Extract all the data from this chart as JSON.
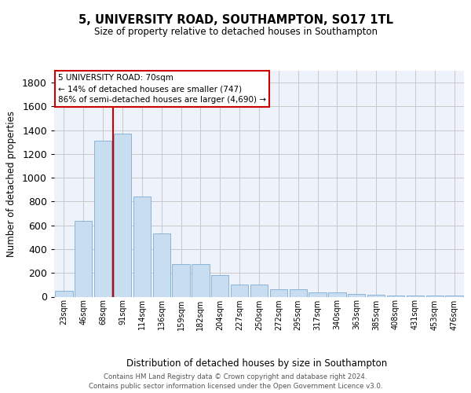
{
  "title": "5, UNIVERSITY ROAD, SOUTHAMPTON, SO17 1TL",
  "subtitle": "Size of property relative to detached houses in Southampton",
  "xlabel": "Distribution of detached houses by size in Southampton",
  "ylabel": "Number of detached properties",
  "bar_color": "#c9ddf0",
  "bar_edge_color": "#8ab4d8",
  "grid_color": "#c8c8c8",
  "bg_color": "#eef2fa",
  "vline_color": "#cc0000",
  "vline_index": 2,
  "annotation_text": "5 UNIVERSITY ROAD: 70sqm\n← 14% of detached houses are smaller (747)\n86% of semi-detached houses are larger (4,690) →",
  "annotation_box_edgecolor": "#cc0000",
  "annotation_bg": "white",
  "categories": [
    "23sqm",
    "46sqm",
    "68sqm",
    "91sqm",
    "114sqm",
    "136sqm",
    "159sqm",
    "182sqm",
    "204sqm",
    "227sqm",
    "250sqm",
    "272sqm",
    "295sqm",
    "317sqm",
    "340sqm",
    "363sqm",
    "385sqm",
    "408sqm",
    "431sqm",
    "453sqm",
    "476sqm"
  ],
  "values": [
    50,
    640,
    1310,
    1370,
    845,
    530,
    275,
    275,
    185,
    105,
    105,
    60,
    60,
    35,
    35,
    25,
    15,
    10,
    10,
    10,
    10
  ],
  "ylim": [
    0,
    1900
  ],
  "yticks": [
    0,
    200,
    400,
    600,
    800,
    1000,
    1200,
    1400,
    1600,
    1800
  ],
  "footer_line1": "Contains HM Land Registry data © Crown copyright and database right 2024.",
  "footer_line2": "Contains public sector information licensed under the Open Government Licence v3.0."
}
